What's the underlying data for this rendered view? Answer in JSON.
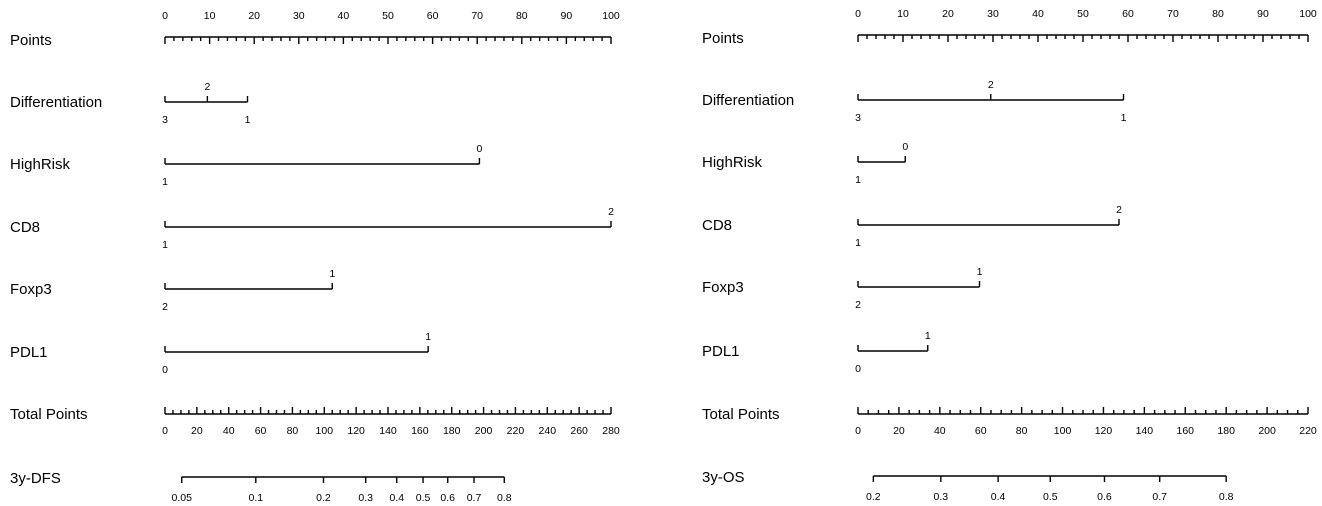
{
  "chart_data": [
    {
      "type": "nomogram",
      "rows": [
        {
          "label": "Points",
          "kind": "axis",
          "min": 0,
          "max": 100,
          "labels": [
            0,
            10,
            20,
            30,
            40,
            50,
            60,
            70,
            80,
            90,
            100
          ]
        },
        {
          "label": "Differentiation",
          "kind": "var",
          "levels": [
            {
              "name": "2",
              "points": 9.5
            },
            {
              "name": "3",
              "points": 0
            },
            {
              "name": "1",
              "points": 18.5
            }
          ]
        },
        {
          "label": "HighRisk",
          "kind": "var",
          "levels": [
            {
              "name": "0",
              "points": 70.5
            },
            {
              "name": "1",
              "points": 0
            }
          ]
        },
        {
          "label": "CD8",
          "kind": "var",
          "levels": [
            {
              "name": "2",
              "points": 100
            },
            {
              "name": "1",
              "points": 0
            }
          ]
        },
        {
          "label": "Foxp3",
          "kind": "var",
          "levels": [
            {
              "name": "1",
              "points": 37.5
            },
            {
              "name": "2",
              "points": 0
            }
          ]
        },
        {
          "label": "PDL1",
          "kind": "var",
          "levels": [
            {
              "name": "1",
              "points": 59
            },
            {
              "name": "0",
              "points": 0
            }
          ]
        },
        {
          "label": "Total Points",
          "kind": "total",
          "min": 0,
          "max": 280,
          "labels": [
            0,
            20,
            40,
            60,
            80,
            100,
            120,
            140,
            160,
            180,
            200,
            220,
            240,
            260,
            280
          ]
        },
        {
          "label": "3y-DFS",
          "kind": "prob",
          "labels": [
            "0.05",
            "0.1",
            "0.2",
            "0.3",
            "0.4",
            "0.5",
            "0.6",
            "0.7",
            "0.8"
          ],
          "total_points": [
            10.5,
            57,
            99.5,
            126,
            145.5,
            162,
            177.5,
            194,
            213
          ]
        }
      ]
    },
    {
      "type": "nomogram",
      "rows": [
        {
          "label": "Points",
          "kind": "axis",
          "min": 0,
          "max": 100,
          "labels": [
            0,
            10,
            20,
            30,
            40,
            50,
            60,
            70,
            80,
            90,
            100
          ]
        },
        {
          "label": "Differentiation",
          "kind": "var",
          "levels": [
            {
              "name": "2",
              "points": 29.5
            },
            {
              "name": "3",
              "points": 0
            },
            {
              "name": "1",
              "points": 59
            }
          ]
        },
        {
          "label": "HighRisk",
          "kind": "var",
          "levels": [
            {
              "name": "0",
              "points": 10.5
            },
            {
              "name": "1",
              "points": 0
            }
          ]
        },
        {
          "label": "CD8",
          "kind": "var",
          "levels": [
            {
              "name": "2",
              "points": 58
            },
            {
              "name": "1",
              "points": 0
            }
          ]
        },
        {
          "label": "Foxp3",
          "kind": "var",
          "levels": [
            {
              "name": "1",
              "points": 27
            },
            {
              "name": "2",
              "points": 0
            }
          ]
        },
        {
          "label": "PDL1",
          "kind": "var",
          "levels": [
            {
              "name": "1",
              "points": 15.5
            },
            {
              "name": "0",
              "points": 0
            }
          ]
        },
        {
          "label": "Total Points",
          "kind": "total",
          "min": 0,
          "max": 220,
          "labels": [
            0,
            20,
            40,
            60,
            80,
            100,
            120,
            140,
            160,
            180,
            200,
            220
          ]
        },
        {
          "label": "3y-OS",
          "kind": "prob",
          "labels": [
            "0.2",
            "0.3",
            "0.4",
            "0.5",
            "0.6",
            "0.7",
            "0.8"
          ],
          "total_points": [
            7.5,
            40.5,
            68.5,
            94,
            120.5,
            147.5,
            180
          ]
        }
      ]
    }
  ]
}
